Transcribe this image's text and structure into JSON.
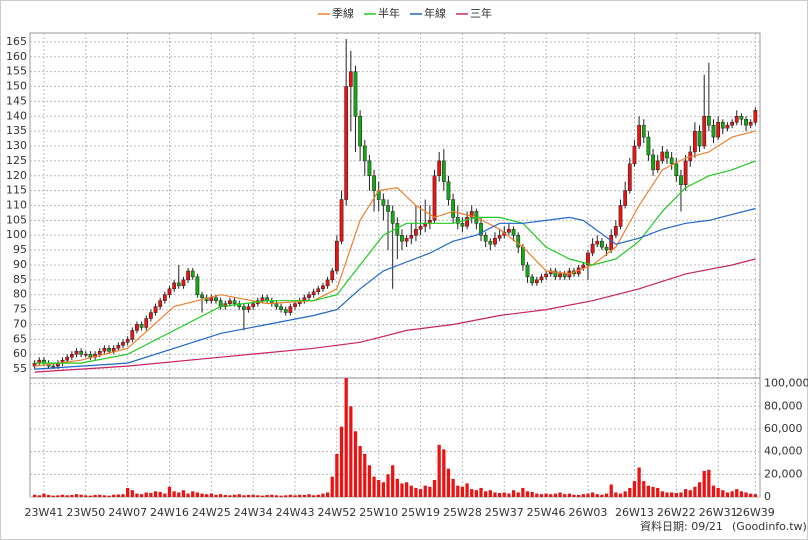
{
  "chart_data": {
    "type": "candlestick",
    "xlim": [
      -1,
      156
    ],
    "xticks": [
      {
        "value": 2,
        "label": "23W41"
      },
      {
        "value": 11,
        "label": "23W50"
      },
      {
        "value": 20,
        "label": "24W07"
      },
      {
        "value": 29,
        "label": "24W16"
      },
      {
        "value": 38,
        "label": "24W25"
      },
      {
        "value": 47,
        "label": "24W34"
      },
      {
        "value": 56,
        "label": "24W43"
      },
      {
        "value": 65,
        "label": "24W52"
      },
      {
        "value": 74,
        "label": "25W10"
      },
      {
        "value": 83,
        "label": "25W19"
      },
      {
        "value": 92,
        "label": "25W28"
      },
      {
        "value": 101,
        "label": "25W37"
      },
      {
        "value": 110,
        "label": "25W46"
      },
      {
        "value": 119,
        "label": "26W03"
      },
      {
        "value": 129,
        "label": "26W13"
      },
      {
        "value": 138,
        "label": "26W22"
      },
      {
        "value": 147,
        "label": "26W31"
      },
      {
        "value": 155,
        "label": "26W39"
      }
    ],
    "ylim": [
      52,
      168
    ],
    "yticks": [
      55,
      60,
      65,
      70,
      75,
      80,
      85,
      90,
      95,
      100,
      105,
      110,
      115,
      120,
      125,
      130,
      135,
      140,
      145,
      150,
      155,
      160,
      165
    ],
    "grid": true,
    "up_color": "#ee1111",
    "down_color": "#11aa11",
    "open": [
      56,
      57,
      58,
      57,
      56,
      56,
      57,
      58,
      59,
      60,
      61,
      60,
      60,
      59,
      60,
      61,
      62,
      61,
      62,
      63,
      64,
      65,
      68,
      70,
      69,
      72,
      74,
      76,
      78,
      80,
      82,
      84,
      83,
      85,
      88,
      86,
      80,
      79,
      78,
      79,
      78,
      76,
      77,
      78,
      77,
      76,
      75,
      76,
      77,
      78,
      79,
      78,
      77,
      76,
      75,
      74,
      76,
      77,
      78,
      79,
      80,
      81,
      82,
      83,
      85,
      88,
      98,
      112,
      150,
      155,
      140,
      130,
      125,
      120,
      115,
      112,
      110,
      108,
      104,
      100,
      98,
      99,
      100,
      102,
      103,
      104,
      105,
      120,
      125,
      118,
      112,
      106,
      104,
      103,
      106,
      108,
      104,
      100,
      98,
      97,
      99,
      100,
      101,
      102,
      100,
      96,
      90,
      86,
      84,
      85,
      86,
      87,
      88,
      86,
      87,
      86,
      88,
      87,
      89,
      90,
      94,
      97,
      98,
      96,
      95,
      100,
      103,
      110,
      115,
      124,
      130,
      137,
      133,
      127,
      122,
      125,
      128,
      126,
      124,
      120,
      117,
      125,
      128,
      135,
      130,
      140,
      137,
      133,
      138,
      136,
      137,
      138,
      140,
      139,
      137,
      138
    ],
    "high": [
      58,
      59,
      59,
      58,
      57,
      58,
      59,
      60,
      61,
      62,
      62,
      61,
      61,
      61,
      62,
      63,
      63,
      63,
      64,
      65,
      66,
      69,
      71,
      71,
      73,
      75,
      77,
      79,
      81,
      83,
      85,
      90,
      86,
      89,
      89,
      87,
      81,
      80,
      80,
      80,
      79,
      78,
      79,
      79,
      78,
      77,
      77,
      78,
      79,
      80,
      80,
      79,
      78,
      77,
      76,
      77,
      78,
      79,
      80,
      81,
      82,
      83,
      84,
      86,
      89,
      100,
      115,
      166,
      162,
      157,
      142,
      132,
      127,
      122,
      118,
      114,
      112,
      110,
      106,
      102,
      100,
      104,
      110,
      110,
      112,
      110,
      122,
      128,
      129,
      120,
      114,
      110,
      106,
      108,
      110,
      109,
      106,
      101,
      99,
      101,
      102,
      103,
      104,
      103,
      101,
      97,
      91,
      87,
      86,
      87,
      88,
      89,
      89,
      88,
      88,
      89,
      89,
      90,
      91,
      95,
      99,
      100,
      99,
      97,
      102,
      105,
      112,
      118,
      126,
      132,
      140,
      139,
      135,
      129,
      127,
      130,
      129,
      128,
      126,
      122,
      127,
      130,
      138,
      137,
      154,
      158,
      139,
      140,
      139,
      138,
      139,
      142,
      141,
      140,
      139,
      143
    ],
    "low": [
      55,
      56,
      56,
      55,
      55,
      55,
      56,
      57,
      58,
      59,
      59,
      59,
      58,
      58,
      59,
      60,
      60,
      60,
      61,
      62,
      63,
      64,
      67,
      68,
      68,
      71,
      73,
      75,
      77,
      79,
      81,
      82,
      82,
      84,
      85,
      79,
      74,
      77,
      77,
      77,
      75,
      75,
      76,
      76,
      75,
      68,
      74,
      75,
      76,
      77,
      77,
      76,
      75,
      74,
      73,
      73,
      75,
      76,
      77,
      78,
      79,
      80,
      81,
      82,
      84,
      87,
      97,
      110,
      135,
      128,
      125,
      120,
      115,
      108,
      108,
      105,
      95,
      82,
      92,
      95,
      96,
      97,
      98,
      100,
      101,
      102,
      104,
      118,
      115,
      110,
      104,
      102,
      101,
      102,
      104,
      102,
      98,
      96,
      95,
      96,
      98,
      99,
      100,
      98,
      94,
      88,
      84,
      83,
      83,
      84,
      85,
      86,
      85,
      85,
      85,
      85,
      86,
      86,
      88,
      85,
      93,
      96,
      95,
      93,
      94,
      99,
      102,
      109,
      114,
      123,
      129,
      131,
      125,
      120,
      121,
      124,
      124,
      122,
      118,
      108,
      115,
      123,
      126,
      128,
      129,
      135,
      131,
      132,
      134,
      135,
      136,
      137,
      137,
      135,
      136,
      137
    ],
    "close": [
      57,
      58,
      57,
      56,
      56,
      57,
      58,
      59,
      60,
      61,
      60,
      60,
      59,
      60,
      61,
      62,
      61,
      62,
      63,
      64,
      65,
      68,
      70,
      69,
      72,
      74,
      76,
      78,
      80,
      82,
      84,
      83,
      85,
      88,
      86,
      80,
      79,
      78,
      79,
      78,
      76,
      77,
      78,
      77,
      76,
      75,
      76,
      77,
      78,
      79,
      78,
      77,
      76,
      75,
      74,
      76,
      77,
      78,
      79,
      80,
      81,
      82,
      83,
      85,
      88,
      98,
      112,
      150,
      155,
      140,
      130,
      125,
      120,
      115,
      112,
      110,
      108,
      104,
      100,
      98,
      99,
      100,
      102,
      103,
      104,
      105,
      120,
      125,
      118,
      112,
      106,
      104,
      103,
      106,
      108,
      104,
      100,
      98,
      97,
      99,
      100,
      101,
      102,
      100,
      96,
      90,
      86,
      84,
      85,
      86,
      87,
      88,
      86,
      87,
      86,
      88,
      87,
      89,
      90,
      94,
      97,
      98,
      96,
      95,
      100,
      103,
      110,
      115,
      124,
      130,
      137,
      133,
      127,
      122,
      125,
      128,
      126,
      124,
      120,
      117,
      125,
      128,
      135,
      130,
      140,
      137,
      133,
      138,
      136,
      137,
      138,
      140,
      139,
      137,
      138,
      142
    ],
    "series": [
      {
        "name": "季線",
        "color": "#f08030",
        "x": [
          0,
          10,
          20,
          30,
          40,
          50,
          60,
          65,
          70,
          74,
          78,
          82,
          86,
          90,
          95,
          100,
          105,
          110,
          115,
          120,
          125,
          130,
          135,
          140,
          145,
          150,
          155
        ],
        "values": [
          56,
          58,
          62,
          76,
          80,
          77,
          78,
          82,
          105,
          115,
          116,
          110,
          106,
          108,
          106,
          102,
          96,
          88,
          87,
          90,
          96,
          110,
          122,
          126,
          128,
          133,
          135
        ]
      },
      {
        "name": "半年",
        "color": "#22cc22",
        "x": [
          0,
          10,
          20,
          30,
          40,
          50,
          60,
          65,
          70,
          75,
          80,
          85,
          90,
          95,
          100,
          105,
          110,
          115,
          120,
          125,
          130,
          135,
          140,
          145,
          150,
          155
        ],
        "values": [
          57,
          57,
          60,
          68,
          76,
          78,
          78,
          80,
          90,
          100,
          104,
          104,
          104,
          106,
          106,
          104,
          96,
          92,
          90,
          92,
          98,
          108,
          116,
          120,
          122,
          125
        ]
      },
      {
        "name": "年線",
        "color": "#2266cc",
        "x": [
          0,
          20,
          30,
          40,
          50,
          60,
          65,
          70,
          75,
          80,
          85,
          90,
          95,
          100,
          105,
          110,
          115,
          118,
          125,
          130,
          135,
          140,
          145,
          150,
          155
        ],
        "values": [
          55,
          57,
          62,
          67,
          70,
          73,
          75,
          82,
          88,
          91,
          94,
          98,
          100,
          104,
          104,
          105,
          106,
          105,
          97,
          99,
          102,
          104,
          105,
          107,
          109
        ]
      },
      {
        "name": "三年",
        "color": "#cc2266",
        "x": [
          0,
          20,
          40,
          60,
          65,
          70,
          75,
          80,
          90,
          100,
          110,
          120,
          130,
          140,
          150,
          155
        ],
        "values": [
          54,
          56,
          59,
          62,
          63,
          64,
          66,
          68,
          70,
          73,
          75,
          78,
          82,
          87,
          90,
          92
        ]
      }
    ],
    "volume": {
      "color": "#ee1111",
      "ylim": [
        0,
        105000
      ],
      "yticks": [
        {
          "value": 0,
          "label": "0"
        },
        {
          "value": 20000,
          "label": "20,000"
        },
        {
          "value": 40000,
          "label": "40,000"
        },
        {
          "value": 60000,
          "label": "60,000"
        },
        {
          "value": 80000,
          "label": "80,000"
        },
        {
          "value": 100000,
          "label": "100,000"
        }
      ],
      "values": [
        2000,
        1500,
        3000,
        1800,
        1200,
        1500,
        2000,
        1500,
        1800,
        2500,
        2000,
        1500,
        1200,
        1800,
        2000,
        1500,
        1200,
        2000,
        2200,
        2500,
        8000,
        6000,
        3000,
        2500,
        4000,
        3500,
        5000,
        4500,
        3000,
        9000,
        5000,
        4000,
        6000,
        3000,
        5000,
        4000,
        3000,
        2500,
        3000,
        2000,
        2500,
        1800,
        1500,
        2000,
        2500,
        1500,
        1800,
        2000,
        1500,
        1200,
        1800,
        2000,
        1500,
        1200,
        1500,
        2000,
        1500,
        2000,
        1800,
        2500,
        1500,
        2000,
        3000,
        4000,
        18000,
        38000,
        62000,
        105000,
        80000,
        58000,
        45000,
        38000,
        28000,
        18000,
        15000,
        13000,
        20000,
        28000,
        16000,
        12000,
        13000,
        10000,
        8000,
        7000,
        10000,
        9000,
        15000,
        46000,
        42000,
        25000,
        16000,
        10000,
        9000,
        12000,
        7000,
        6000,
        8000,
        5000,
        6000,
        4000,
        3500,
        4000,
        3000,
        6000,
        4000,
        8000,
        5000,
        4500,
        3000,
        2500,
        3000,
        2500,
        3000,
        4000,
        2500,
        3000,
        2000,
        1800,
        2500,
        3000,
        4000,
        2500,
        2000,
        3000,
        11000,
        4000,
        3000,
        5000,
        8000,
        14000,
        26000,
        14000,
        10000,
        9000,
        8000,
        5000,
        4000,
        4000,
        3500,
        4000,
        7000,
        6000,
        9000,
        13000,
        23000,
        24000,
        10000,
        8000,
        6000,
        4000,
        5000,
        7000,
        5000,
        4000,
        3000,
        2500
      ]
    },
    "date_label": "資料日期: 09/21",
    "source": "(Goodinfo.tw)"
  }
}
